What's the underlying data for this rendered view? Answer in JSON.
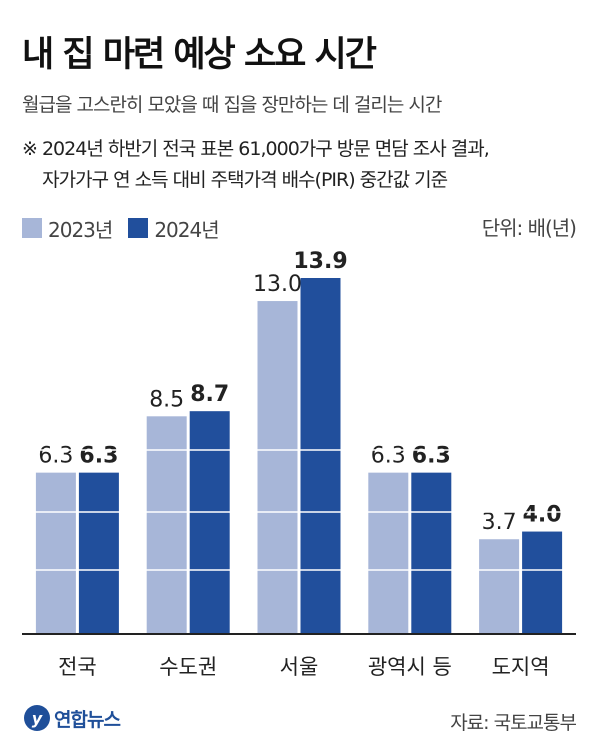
{
  "title": "내 집 마련 예상 소요 시간",
  "subtitle": "월급을 고스란히 모았을 때 집을 장만하는 데 걸리는 시간",
  "note": "※ 2024년 하반기 전국 표본 61,000가구 방문 면담 조사 결과,\n    자가가구 연 소득 대비 주택가격 배수(PIR) 중간값 기준",
  "unit": "단위: 배(년)",
  "source": "자료: 국토교통부",
  "logo": {
    "text": "연합뉴스",
    "icon": "yonhap-logo-icon"
  },
  "colors": {
    "series_2023": "#a7b6d8",
    "series_2024": "#214f9c",
    "axis": "#222222",
    "grid": "#ffffff"
  },
  "chart_data": {
    "type": "bar",
    "categories": [
      "전국",
      "수도권",
      "서울",
      "광역시 등",
      "도지역"
    ],
    "series": [
      {
        "name": "2023년",
        "values": [
          6.3,
          8.5,
          13.0,
          6.3,
          3.7
        ],
        "labels": [
          "6.3",
          "8.5",
          "13.0",
          "6.3",
          "3.7"
        ]
      },
      {
        "name": "2024년",
        "values": [
          6.3,
          8.7,
          13.9,
          6.3,
          4.0
        ],
        "labels": [
          "6.3",
          "8.7",
          "13.9",
          "6.3",
          "4.0"
        ]
      }
    ],
    "ylabel": "",
    "xlabel": "",
    "ylim": [
      0,
      14
    ],
    "legend_position": "top-left",
    "gridlines": "white horizontal lines across bars"
  }
}
